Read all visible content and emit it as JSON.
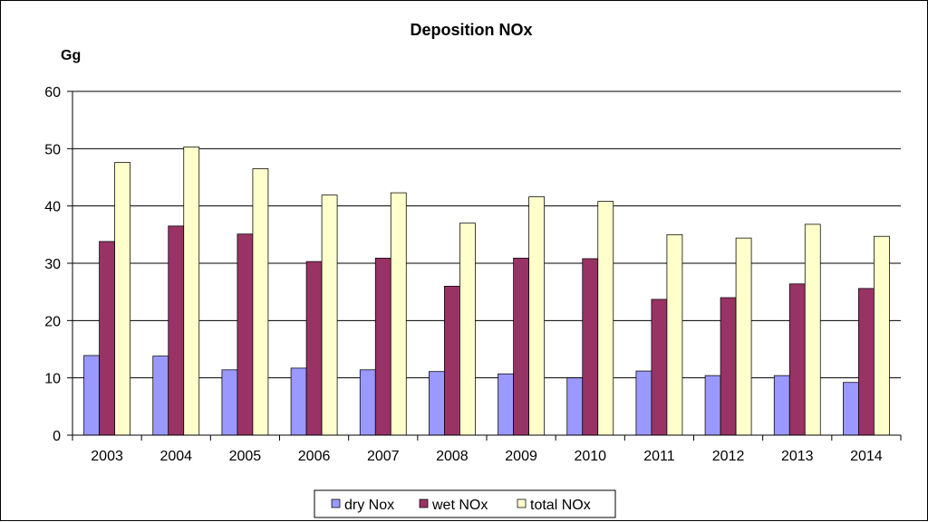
{
  "chart_data": {
    "type": "bar",
    "title": "Deposition NOx",
    "ylabel": "Gg",
    "xlabel": "",
    "ylim": [
      0,
      60
    ],
    "yticks": [
      0,
      10,
      20,
      30,
      40,
      50,
      60
    ],
    "grid": true,
    "legend_position": "bottom",
    "categories": [
      "2003",
      "2004",
      "2005",
      "2006",
      "2007",
      "2008",
      "2009",
      "2010",
      "2011",
      "2012",
      "2013",
      "2014"
    ],
    "series": [
      {
        "name": "dry Nox",
        "color": "#9999ff",
        "values": [
          13.9,
          13.8,
          11.4,
          11.7,
          11.4,
          11.1,
          10.7,
          10.0,
          11.2,
          10.4,
          10.4,
          9.2
        ]
      },
      {
        "name": "wet NOx",
        "color": "#993366",
        "values": [
          33.8,
          36.5,
          35.1,
          30.3,
          30.9,
          26.0,
          30.9,
          30.8,
          23.7,
          24.0,
          26.4,
          25.6
        ]
      },
      {
        "name": "total NOx",
        "color": "#ffffcc",
        "values": [
          47.6,
          50.3,
          46.5,
          41.9,
          42.3,
          37.0,
          41.6,
          40.8,
          35.0,
          34.4,
          36.8,
          34.7
        ]
      }
    ]
  }
}
